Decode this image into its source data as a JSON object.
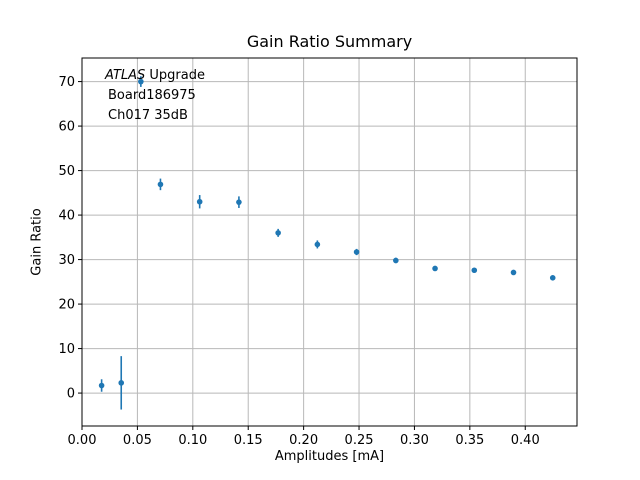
{
  "title": "Gain Ratio Summary",
  "annotation": {
    "experiment": "ATLAS",
    "experiment_suffix": " Upgrade",
    "board": "Board186975",
    "channel": "Ch017 35dB"
  },
  "chart_data": {
    "type": "scatter",
    "title": "Gain Ratio Summary",
    "xlabel": "Amplitudes [mA]",
    "ylabel": "Gain Ratio",
    "xlim": [
      0,
      0.4467
    ],
    "ylim": [
      -7.4,
      75.3
    ],
    "grid": true,
    "grid_color": "#b8b8b8",
    "spine_color": "#000000",
    "marker_color": "#1f77b4",
    "xtick_values": [
      0.0,
      0.05,
      0.1,
      0.15,
      0.2,
      0.25,
      0.3,
      0.35,
      0.4
    ],
    "xtick_labels": [
      "0.00",
      "0.05",
      "0.10",
      "0.15",
      "0.20",
      "0.25",
      "0.30",
      "0.35",
      "0.40"
    ],
    "ytick_values": [
      0,
      10,
      20,
      30,
      40,
      50,
      60,
      70
    ],
    "ytick_labels": [
      "0",
      "10",
      "20",
      "30",
      "40",
      "50",
      "60",
      "70"
    ],
    "legend": "none",
    "annotation_lines": [
      "ATLAS Upgrade",
      "Board186975",
      "Ch017 35dB"
    ],
    "series": [
      {
        "name": "gain-ratio-vs-amplitude",
        "points": [
          {
            "x": 0.0177,
            "y": 1.7,
            "yerr": 1.4
          },
          {
            "x": 0.0354,
            "y": 2.3,
            "yerr": 6.0
          },
          {
            "x": 0.0531,
            "y": 70.0,
            "yerr": 1.2
          },
          {
            "x": 0.0708,
            "y": 46.9,
            "yerr": 1.3
          },
          {
            "x": 0.1062,
            "y": 43.0,
            "yerr": 1.5
          },
          {
            "x": 0.1416,
            "y": 42.9,
            "yerr": 1.3
          },
          {
            "x": 0.177,
            "y": 36.0,
            "yerr": 0.9
          },
          {
            "x": 0.2124,
            "y": 33.4,
            "yerr": 0.9
          },
          {
            "x": 0.2478,
            "y": 31.7,
            "yerr": 0.7
          },
          {
            "x": 0.2832,
            "y": 29.8,
            "yerr": 0.6
          },
          {
            "x": 0.3186,
            "y": 28.0,
            "yerr": 0.5
          },
          {
            "x": 0.354,
            "y": 27.6,
            "yerr": 0.45
          },
          {
            "x": 0.3894,
            "y": 27.1,
            "yerr": 0.45
          },
          {
            "x": 0.4248,
            "y": 25.9,
            "yerr": 0.4
          }
        ]
      }
    ]
  }
}
